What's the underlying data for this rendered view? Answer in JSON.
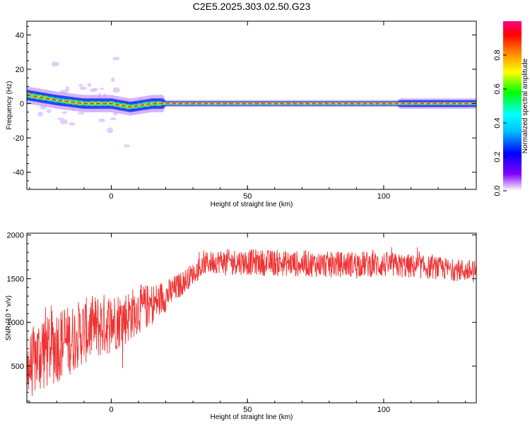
{
  "figure": {
    "title": "C2E5.2025.303.02.50.G23"
  },
  "chart_data": [
    {
      "type": "heatmap",
      "title": "",
      "xlabel": "Height of straight line (km)",
      "ylabel": "Frequency (Hz)",
      "xlim": [
        -31,
        134
      ],
      "ylim": [
        -50,
        48
      ],
      "x_ticks": [
        0,
        50,
        100
      ],
      "x_tick_labels": [
        "0",
        "50",
        "100"
      ],
      "y_ticks": [
        -40,
        -20,
        0,
        20,
        40
      ],
      "y_tick_labels": [
        "-40",
        "-20",
        "0",
        "20",
        "40"
      ],
      "colorbar": {
        "label": "Normalized spectral amplitude",
        "range": [
          0,
          1
        ],
        "ticks": [
          0.0,
          0.2,
          0.4,
          0.6,
          0.8
        ],
        "tick_labels": [
          "0.0",
          "0.2",
          "0.4",
          "0.6",
          "0.8"
        ],
        "colors": [
          "#ffffff",
          "#7f00ff",
          "#0000ff",
          "#00bfff",
          "#00ffff",
          "#00ff00",
          "#ffff00",
          "#ff7f00",
          "#ff0000",
          "#ff0080"
        ]
      },
      "ridge": {
        "description_points_x": [
          -31,
          -20,
          -10,
          0,
          7,
          15,
          30,
          60,
          100,
          134
        ],
        "frequency_y": [
          5,
          2,
          0,
          0,
          -2,
          0,
          0,
          0,
          0,
          0
        ]
      }
    },
    {
      "type": "line",
      "title": "",
      "xlabel": "Height of straight line (km)",
      "ylabel": "SNR (10 * v/v)",
      "xlim": [
        -31,
        134
      ],
      "ylim": [
        80,
        2020
      ],
      "x_ticks": [
        0,
        50,
        100
      ],
      "x_tick_labels": [
        "0",
        "50",
        "100"
      ],
      "y_ticks": [
        500,
        1000,
        1500,
        2000
      ],
      "y_tick_labels": [
        "500",
        "1000",
        "1500",
        "2000"
      ],
      "color": "#f03232",
      "envelope": {
        "x": [
          -31,
          -25,
          -20,
          -15,
          -10,
          -5,
          0,
          5,
          10,
          15,
          20,
          25,
          30,
          35,
          40,
          50,
          60,
          70,
          80,
          90,
          100,
          110,
          120,
          134
        ],
        "baseline": [
          450,
          700,
          750,
          800,
          900,
          950,
          1000,
          1050,
          1150,
          1200,
          1300,
          1420,
          1560,
          1680,
          1700,
          1690,
          1680,
          1670,
          1660,
          1670,
          1660,
          1640,
          1620,
          1580
        ],
        "spread": [
          350,
          500,
          450,
          400,
          380,
          380,
          350,
          320,
          280,
          250,
          180,
          150,
          120,
          130,
          140,
          150,
          150,
          150,
          150,
          150,
          150,
          140,
          130,
          130
        ]
      }
    }
  ]
}
